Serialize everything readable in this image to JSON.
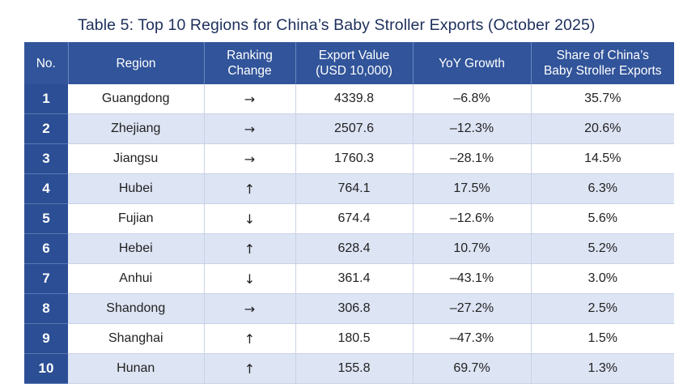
{
  "title": "Table 5: Top 10 Regions for China’s Baby Stroller Exports (October 2025)",
  "headers": {
    "no": "No.",
    "region": "Region",
    "rank_line1": "Ranking",
    "rank_line2": "Change",
    "value_line1": "Export Value",
    "value_line2": "(USD 10,000)",
    "yoy": "YoY Growth",
    "share_line1": "Share of China’s",
    "share_line2": "Baby Stroller Exports"
  },
  "rows": [
    {
      "no": "1",
      "region": "Guangdong",
      "change": "→",
      "value": "4339.8",
      "yoy": "–6.8%",
      "share": "35.7%"
    },
    {
      "no": "2",
      "region": "Zhejiang",
      "change": "→",
      "value": "2507.6",
      "yoy": "–12.3%",
      "share": "20.6%"
    },
    {
      "no": "3",
      "region": "Jiangsu",
      "change": "→",
      "value": "1760.3",
      "yoy": "–28.1%",
      "share": "14.5%"
    },
    {
      "no": "4",
      "region": "Hubei",
      "change": "↑",
      "value": "764.1",
      "yoy": "17.5%",
      "share": "6.3%"
    },
    {
      "no": "5",
      "region": "Fujian",
      "change": "↓",
      "value": "674.4",
      "yoy": "–12.6%",
      "share": "5.6%"
    },
    {
      "no": "6",
      "region": "Hebei",
      "change": "↑",
      "value": "628.4",
      "yoy": "10.7%",
      "share": "5.2%"
    },
    {
      "no": "7",
      "region": "Anhui",
      "change": "↓",
      "value": "361.4",
      "yoy": "–43.1%",
      "share": "3.0%"
    },
    {
      "no": "8",
      "region": "Shandong",
      "change": "→",
      "value": "306.8",
      "yoy": "–27.2%",
      "share": "2.5%"
    },
    {
      "no": "9",
      "region": "Shanghai",
      "change": "↑",
      "value": "180.5",
      "yoy": "–47.3%",
      "share": "1.5%"
    },
    {
      "no": "10",
      "region": "Hunan",
      "change": "↑",
      "value": "155.8",
      "yoy": "69.7%",
      "share": "1.3%"
    }
  ],
  "colors": {
    "header_bg": "#31549a",
    "no_col_bg": "#2b4e94",
    "stripe_bg": "#dde4f4",
    "title_color": "#1d2f5c"
  }
}
